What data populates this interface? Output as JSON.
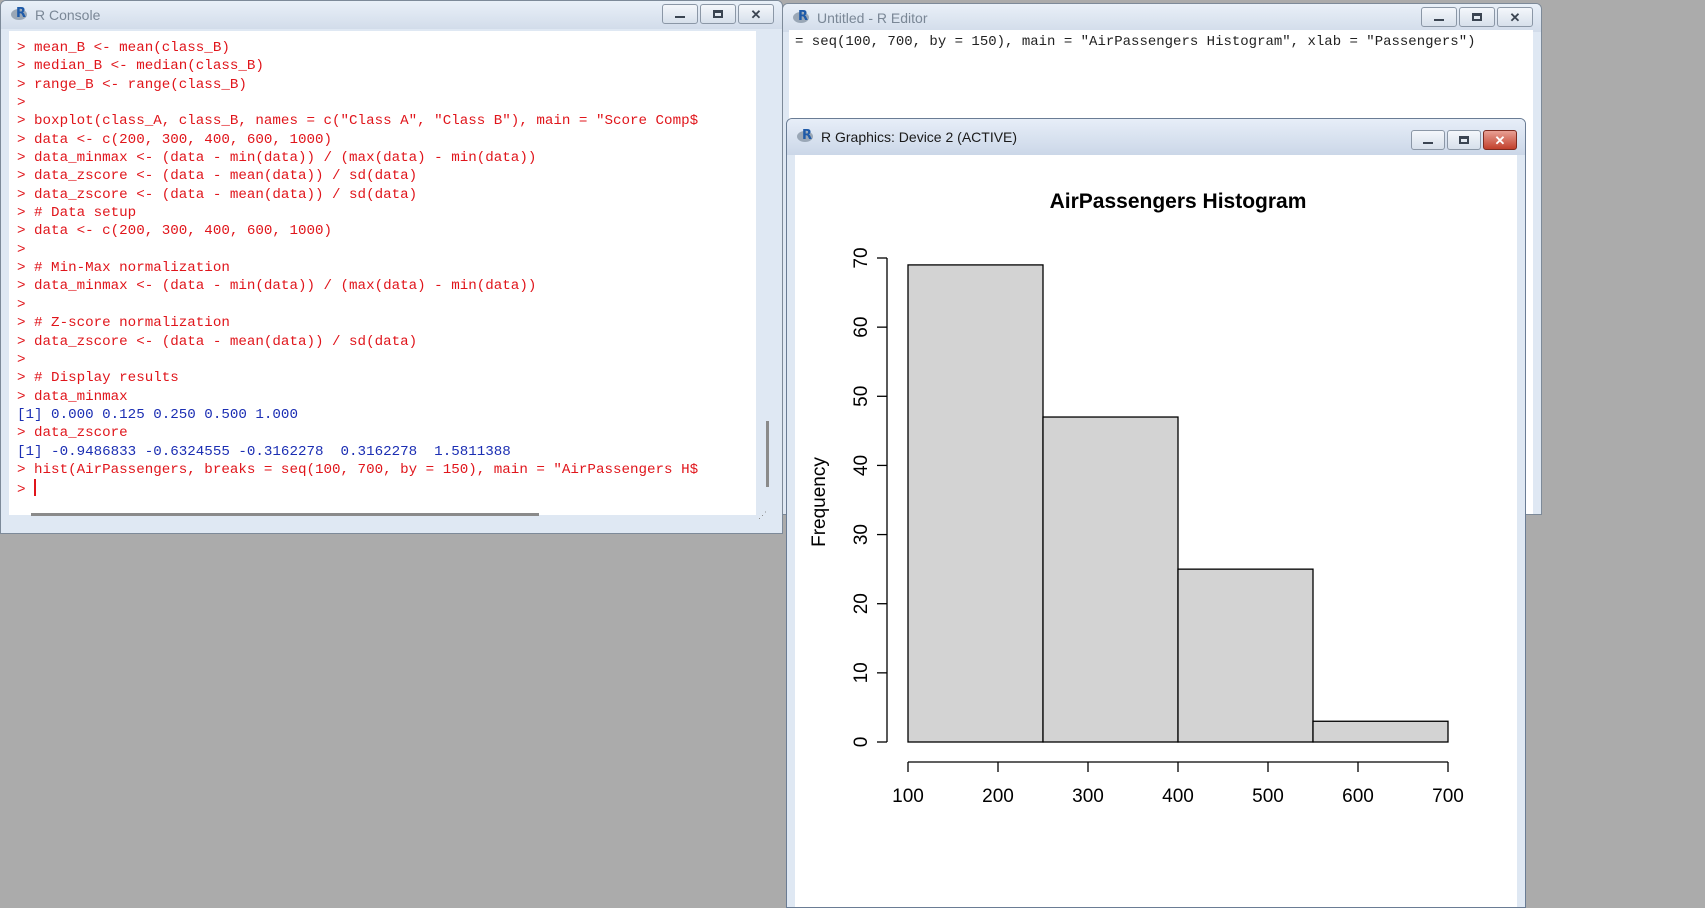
{
  "console": {
    "title": "R Console",
    "lines": [
      {
        "text": "> mean_B <- mean(class_B)",
        "kind": "cmd"
      },
      {
        "text": "> median_B <- median(class_B)",
        "kind": "cmd"
      },
      {
        "text": "> range_B <- range(class_B)",
        "kind": "cmd"
      },
      {
        "text": ">",
        "kind": "cmd"
      },
      {
        "text": "> boxplot(class_A, class_B, names = c(\"Class A\", \"Class B\"), main = \"Score Comp$",
        "kind": "cmd"
      },
      {
        "text": "> data <- c(200, 300, 400, 600, 1000)",
        "kind": "cmd"
      },
      {
        "text": "> data_minmax <- (data - min(data)) / (max(data) - min(data))",
        "kind": "cmd"
      },
      {
        "text": "> data_zscore <- (data - mean(data)) / sd(data)",
        "kind": "cmd"
      },
      {
        "text": "> data_zscore <- (data - mean(data)) / sd(data)",
        "kind": "cmd"
      },
      {
        "text": "> # Data setup",
        "kind": "cmd"
      },
      {
        "text": "> data <- c(200, 300, 400, 600, 1000)",
        "kind": "cmd"
      },
      {
        "text": ">",
        "kind": "cmd"
      },
      {
        "text": "> # Min-Max normalization",
        "kind": "cmd"
      },
      {
        "text": "> data_minmax <- (data - min(data)) / (max(data) - min(data))",
        "kind": "cmd"
      },
      {
        "text": ">",
        "kind": "cmd"
      },
      {
        "text": "> # Z-score normalization",
        "kind": "cmd"
      },
      {
        "text": "> data_zscore <- (data - mean(data)) / sd(data)",
        "kind": "cmd"
      },
      {
        "text": ">",
        "kind": "cmd"
      },
      {
        "text": "> # Display results",
        "kind": "cmd"
      },
      {
        "text": "> data_minmax",
        "kind": "cmd"
      },
      {
        "text": "[1] 0.000 0.125 0.250 0.500 1.000",
        "kind": "out"
      },
      {
        "text": "> data_zscore",
        "kind": "cmd"
      },
      {
        "text": "[1] -0.9486833 -0.6324555 -0.3162278  0.3162278  1.5811388",
        "kind": "out"
      },
      {
        "text": "> hist(AirPassengers, breaks = seq(100, 700, by = 150), main = \"AirPassengers H$",
        "kind": "cmd"
      },
      {
        "text": "> ",
        "kind": "prompt"
      }
    ]
  },
  "editor": {
    "title": "Untitled - R Editor",
    "code_line": "= seq(100, 700, by = 150), main = \"AirPassengers Histogram\", xlab = \"Passengers\")"
  },
  "device": {
    "title": "R Graphics: Device 2 (ACTIVE)"
  },
  "window_controls": {
    "minimize": "minimize",
    "maximize": "maximize",
    "close": "close"
  },
  "chart_data": {
    "type": "bar",
    "title": "AirPassengers Histogram",
    "xlabel": "",
    "ylabel": "Frequency",
    "breaks": [
      100,
      250,
      400,
      550,
      700
    ],
    "counts": [
      69,
      47,
      25,
      3
    ],
    "x_ticks": [
      100,
      200,
      300,
      400,
      500,
      600,
      700
    ],
    "y_ticks": [
      0,
      10,
      20,
      30,
      40,
      50,
      60,
      70
    ],
    "xlim": [
      100,
      700
    ],
    "ylim": [
      0,
      70
    ],
    "bar_fill": "#d3d3d3",
    "bar_stroke": "#000000",
    "grid": false
  }
}
